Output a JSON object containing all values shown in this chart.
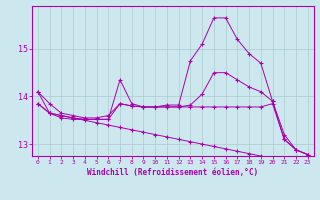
{
  "xlabel": "Windchill (Refroidissement éolien,°C)",
  "ylabel": "",
  "bg_color": "#cce8ee",
  "line_color": "#aa00aa",
  "grid_color": "#aacccc",
  "hours": [
    0,
    1,
    2,
    3,
    4,
    5,
    6,
    7,
    8,
    9,
    10,
    11,
    12,
    13,
    14,
    15,
    16,
    17,
    18,
    19,
    20,
    21,
    22,
    23
  ],
  "line1": [
    14.1,
    13.85,
    13.65,
    13.6,
    13.55,
    13.55,
    13.6,
    13.85,
    13.8,
    13.78,
    13.78,
    13.78,
    13.78,
    13.78,
    13.78,
    13.78,
    13.78,
    13.78,
    13.78,
    13.78,
    13.85,
    13.1,
    12.88,
    12.78
  ],
  "line2": [
    13.85,
    13.65,
    13.6,
    13.55,
    13.52,
    13.52,
    13.52,
    14.35,
    13.85,
    13.78,
    13.78,
    13.82,
    13.82,
    14.75,
    15.1,
    15.65,
    15.65,
    15.2,
    14.9,
    14.7,
    13.9,
    13.2,
    12.88,
    12.78
  ],
  "line3": [
    14.1,
    13.65,
    13.55,
    13.52,
    13.52,
    13.52,
    13.52,
    13.85,
    13.8,
    13.78,
    13.78,
    13.78,
    13.78,
    13.82,
    14.05,
    14.5,
    14.5,
    14.35,
    14.2,
    14.1,
    13.9,
    13.1,
    12.88,
    12.78
  ],
  "line4": [
    13.85,
    13.65,
    13.6,
    13.55,
    13.5,
    13.45,
    13.4,
    13.35,
    13.3,
    13.25,
    13.2,
    13.15,
    13.1,
    13.05,
    13.0,
    12.95,
    12.9,
    12.85,
    12.8,
    12.75,
    12.7,
    12.65,
    12.6,
    12.55
  ],
  "ylim": [
    12.75,
    15.9
  ],
  "yticks": [
    13,
    14,
    15
  ],
  "xlim": [
    -0.5,
    23.5
  ]
}
